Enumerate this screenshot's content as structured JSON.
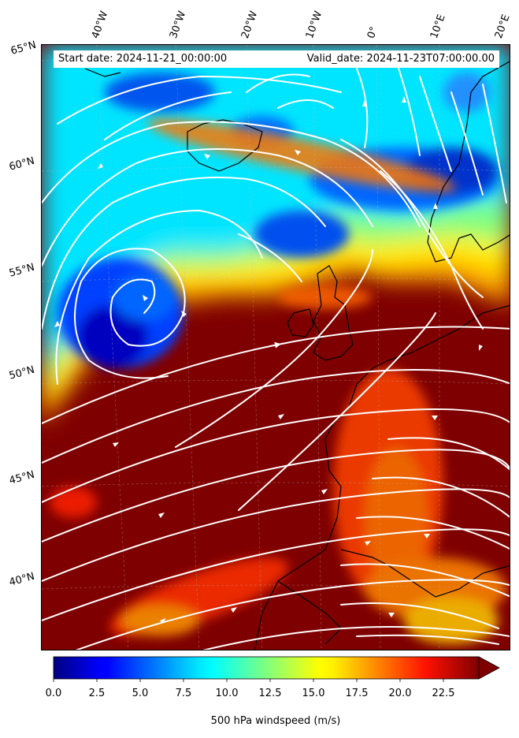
{
  "header": {
    "start_date": "Start date: 2024-11-21_00:00:00",
    "valid_date": "Valid_date: 2024-11-23T07:00:00.00"
  },
  "longitude_labels": [
    "40°W",
    "30°W",
    "20°W",
    "10°W",
    "0°",
    "10°E",
    "20°E"
  ],
  "latitude_labels": [
    "65°N",
    "60°N",
    "55°N",
    "50°N",
    "45°N",
    "40°N"
  ],
  "colorbar": {
    "label": "500 hPa windspeed (m/s)",
    "ticks": [
      "0.0",
      "2.5",
      "5.0",
      "7.5",
      "10.0",
      "12.5",
      "15.0",
      "17.5",
      "20.0",
      "22.5"
    ],
    "range": [
      0,
      25
    ],
    "extend": "max",
    "colormap": "jet"
  },
  "colors": {
    "jet_low": "#00007f",
    "jet_mid": "#7fff7f",
    "jet_high": "#7f0000",
    "streamline": "#ffffff",
    "coastline": "#000000"
  }
}
